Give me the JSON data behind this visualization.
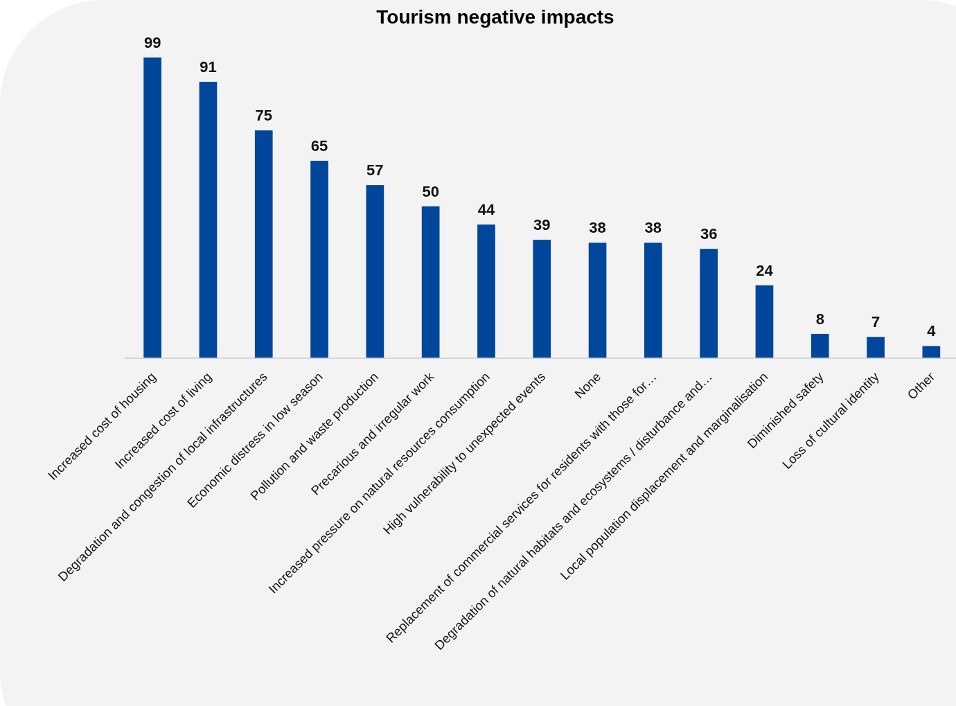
{
  "chart_data": {
    "type": "bar",
    "title": "Tourism negative impacts",
    "categories": [
      "Increased cost of housing",
      "Increased cost of living",
      "Degradation and congestion of local infrastructures",
      "Economic distress in low season",
      "Pollution and waste production",
      "Precarious and irregular work",
      "Increased pressure on natural resources consumption",
      "High vulnerability to unexpected events",
      "None",
      "Replacement of commercial services for residents with those for…",
      "Degradation of natural habitats and ecosystems / disturbance and…",
      "Local population displacement and marginalisation",
      "Diminished safety",
      "Loss of cultural identity",
      "Other"
    ],
    "values": [
      99,
      91,
      75,
      65,
      57,
      50,
      44,
      39,
      38,
      38,
      36,
      24,
      8,
      7,
      4
    ],
    "color": "#00469a",
    "data_labels": true
  }
}
